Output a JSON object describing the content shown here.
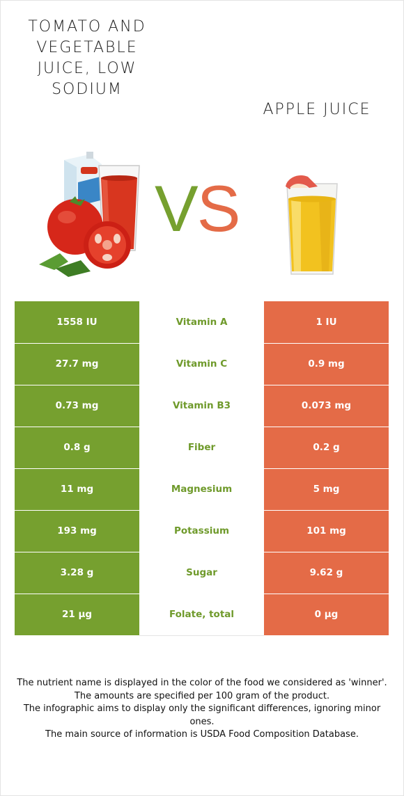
{
  "foods": {
    "left": {
      "name": "TOMATO AND VEGETABLE JUICE, LOW SODIUM",
      "color": "#76a02f",
      "image": "tomato-juice-illustration"
    },
    "right": {
      "name": "APPLE JUICE",
      "color": "#e46b47",
      "image": "apple-juice-glass-illustration"
    }
  },
  "vs": {
    "v": "V",
    "s": "S"
  },
  "rows": [
    {
      "nutrient": "Vitamin A",
      "left": "1558 IU",
      "right": "1 IU",
      "winner": "left"
    },
    {
      "nutrient": "Vitamin C",
      "left": "27.7 mg",
      "right": "0.9 mg",
      "winner": "left"
    },
    {
      "nutrient": "Vitamin B3",
      "left": "0.73 mg",
      "right": "0.073 mg",
      "winner": "left"
    },
    {
      "nutrient": "Fiber",
      "left": "0.8 g",
      "right": "0.2 g",
      "winner": "left"
    },
    {
      "nutrient": "Magnesium",
      "left": "11 mg",
      "right": "5 mg",
      "winner": "left"
    },
    {
      "nutrient": "Potassium",
      "left": "193 mg",
      "right": "101 mg",
      "winner": "left"
    },
    {
      "nutrient": "Sugar",
      "left": "3.28 g",
      "right": "9.62 g",
      "winner": "left"
    },
    {
      "nutrient": "Folate, total",
      "left": "21 µg",
      "right": "0 µg",
      "winner": "left"
    }
  ],
  "notes": [
    "The nutrient name is displayed in the color of the food we considered as 'winner'.",
    "The amounts are specified per 100 gram of the product.",
    "The infographic aims to display only the significant differences, ignoring minor ones.",
    "The main source of information is USDA Food Composition Database."
  ]
}
